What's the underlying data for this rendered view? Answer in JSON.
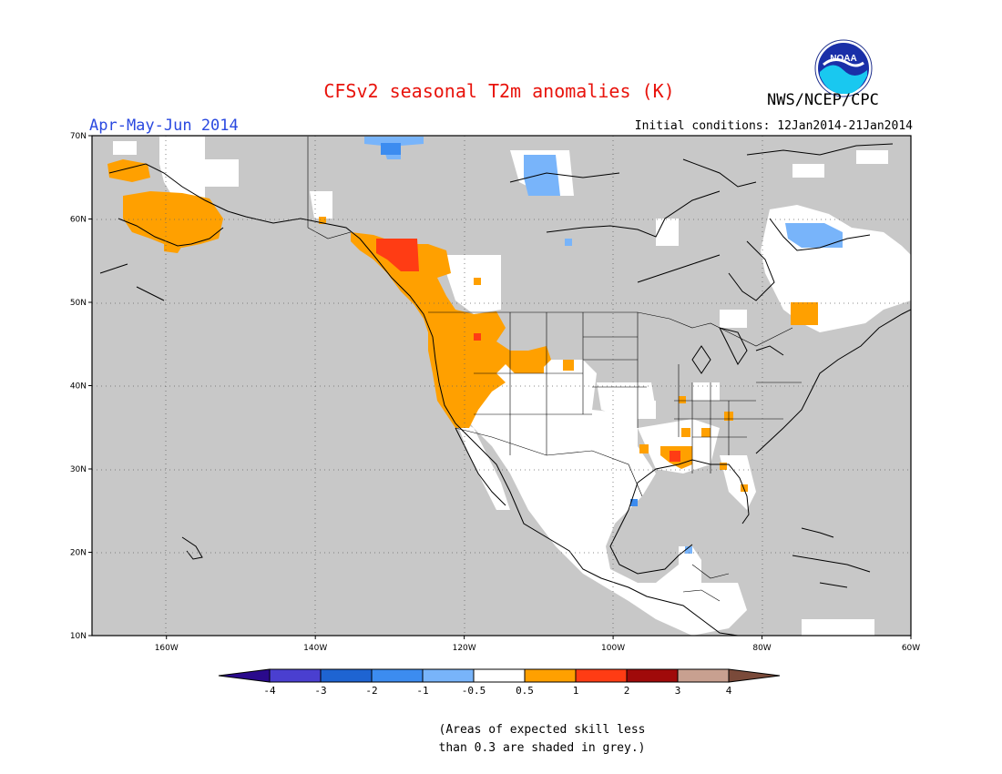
{
  "header": {
    "title": "CFSv2 seasonal T2m anomalies (K)",
    "agency": "NWS/NCEP/CPC",
    "season": "Apr-May-Jun 2014",
    "initial_conditions": "Initial conditions: 12Jan2014-21Jan2014"
  },
  "logo": {
    "text": "NOAA",
    "icon": "noaa-logo"
  },
  "map": {
    "lon_range": [
      -170,
      -60
    ],
    "lat_range": [
      10,
      70
    ],
    "lon_ticks": [
      {
        "lon": -160,
        "label": "160W"
      },
      {
        "lon": -140,
        "label": "140W"
      },
      {
        "lon": -120,
        "label": "120W"
      },
      {
        "lon": -100,
        "label": "100W"
      },
      {
        "lon": -80,
        "label": "80W"
      },
      {
        "lon": -60,
        "label": "60W"
      }
    ],
    "lat_ticks": [
      {
        "lat": 10,
        "label": "10N"
      },
      {
        "lat": 20,
        "label": "20N"
      },
      {
        "lat": 30,
        "label": "30N"
      },
      {
        "lat": 40,
        "label": "40N"
      },
      {
        "lat": 50,
        "label": "50N"
      },
      {
        "lat": 60,
        "label": "60N"
      },
      {
        "lat": 70,
        "label": "70N"
      }
    ],
    "grid": "dotted",
    "colors": {
      "low_skill_grey": "#c8c8c8",
      "near_normal": "#ffffff",
      "warm_0.5_1": "#ffa000",
      "warm_1_2": "#ff3c14",
      "cool_-1_-0.5": "#78b4fa",
      "cool_-2_-1": "#3c8cf0"
    }
  },
  "colorbar": {
    "labels": [
      "-4",
      "-3",
      "-2",
      "-1",
      "-0.5",
      "0.5",
      "1",
      "2",
      "3",
      "4"
    ],
    "colors": [
      "#2a0a8c",
      "#4a3fd0",
      "#1e64d2",
      "#3c8cf0",
      "#78b4fa",
      "#ffffff",
      "#ffa000",
      "#ff3c14",
      "#a00a0a",
      "#c8a090",
      "#7a4a3a"
    ]
  },
  "footnote": {
    "line1": "(Areas of expected skill less",
    "line2": "than 0.3 are shaded in grey.)"
  }
}
